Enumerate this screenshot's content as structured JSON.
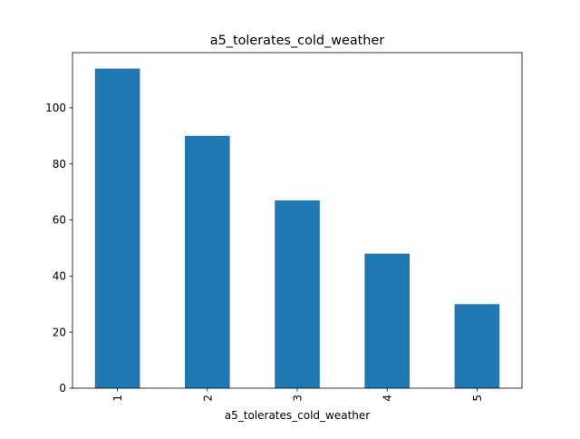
{
  "chart_data": {
    "type": "bar",
    "title": "a5_tolerates_cold_weather",
    "xlabel": "a5_tolerates_cold_weather",
    "ylabel": "",
    "categories": [
      "1",
      "2",
      "3",
      "4",
      "5"
    ],
    "values": [
      114,
      90,
      67,
      48,
      30
    ],
    "ylim": [
      0,
      119.7
    ],
    "yticks": [
      0,
      20,
      40,
      60,
      80,
      100
    ],
    "grid": false,
    "legend": "none",
    "bar_color": "#1f77b4",
    "x_tick_rotation": 90
  }
}
